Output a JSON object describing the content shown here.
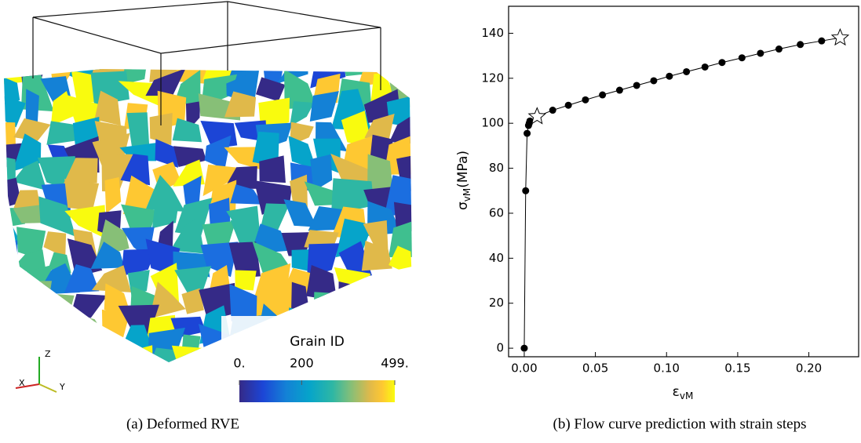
{
  "panel_a": {
    "caption": "(a) Deformed RVE",
    "colorbar": {
      "title": "Grain ID",
      "lim": [
        0,
        499
      ],
      "ticks": [
        {
          "value": 0,
          "label": "0."
        },
        200,
        {
          "value": 499,
          "label": "499."
        }
      ]
    },
    "triad": {
      "z": "Z",
      "x": "X",
      "y": "Y"
    }
  },
  "panel_b": {
    "caption": "(b) Flow curve prediction with strain steps",
    "chart_data": {
      "type": "line",
      "xlabel": {
        "symbol": "ε",
        "subscript": "vM"
      },
      "ylabel": {
        "symbol": "σ",
        "subscript": "vM",
        "unit": "(MPa)"
      },
      "xlim": [
        -0.011,
        0.235
      ],
      "ylim": [
        -3.8,
        152
      ],
      "xticks": [
        {
          "value": 0,
          "label": "0.00"
        },
        0.05,
        {
          "value": 0.1,
          "label": "0.10"
        },
        0.15,
        {
          "value": 0.2,
          "label": "0.20"
        }
      ],
      "yticks": [
        0,
        20,
        40,
        60,
        80,
        100,
        120,
        140
      ],
      "series": [
        {
          "color": "#000000",
          "x": [
            0,
            0.001,
            0.002,
            0.003,
            0.0035,
            0.004,
            0.009,
            0.02,
            0.031,
            0.043,
            0.055,
            0.067,
            0.079,
            0.091,
            0.102,
            0.114,
            0.127,
            0.139,
            0.153,
            0.166,
            0.179,
            0.194,
            0.209,
            0.222
          ],
          "values": [
            0,
            70,
            95.5,
            99,
            100,
            101,
            103,
            105.8,
            108,
            110.4,
            112.6,
            114.7,
            116.8,
            118.9,
            120.9,
            122.9,
            125,
            127,
            129.1,
            131.1,
            133,
            135,
            136.6,
            138
          ],
          "markers": [
            "circle",
            "circle",
            "circle",
            "circle",
            "circle",
            "circle",
            "star",
            "circle",
            "circle",
            "circle",
            "circle",
            "circle",
            "circle",
            "circle",
            "circle",
            "circle",
            "circle",
            "circle",
            "circle",
            "circle",
            "circle",
            "circle",
            "circle",
            "star"
          ]
        }
      ]
    }
  }
}
